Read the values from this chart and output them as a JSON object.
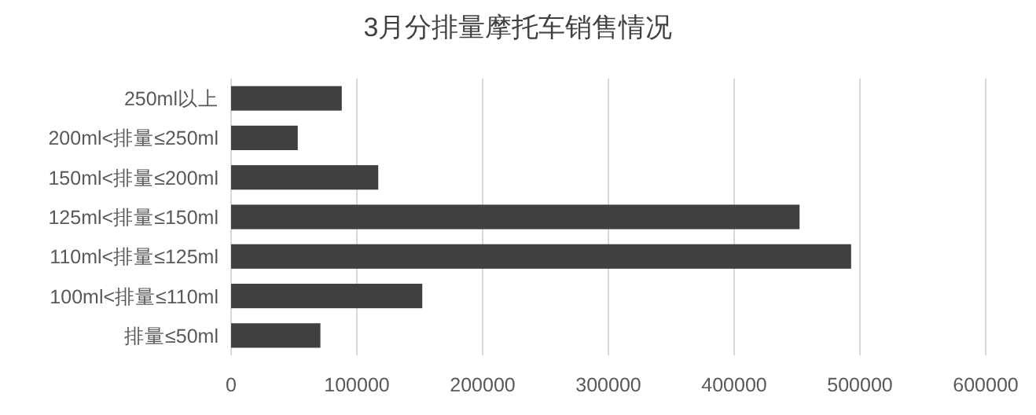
{
  "chart_data": {
    "type": "bar",
    "orientation": "horizontal",
    "title": "3月分排量摩托车销售情况",
    "categories": [
      "250ml以上",
      "200ml<排量≤250ml",
      "150ml<排量≤200ml",
      "125ml<排量≤150ml",
      "110ml<排量≤125ml",
      "100ml<排量≤110ml",
      "排量≤50ml"
    ],
    "values": [
      88000,
      53000,
      117000,
      452000,
      493000,
      152000,
      71000
    ],
    "color": "#404040",
    "xlim": [
      0,
      600000
    ],
    "xticks": [
      0,
      100000,
      200000,
      300000,
      400000,
      500000,
      600000
    ],
    "grid": "x"
  }
}
